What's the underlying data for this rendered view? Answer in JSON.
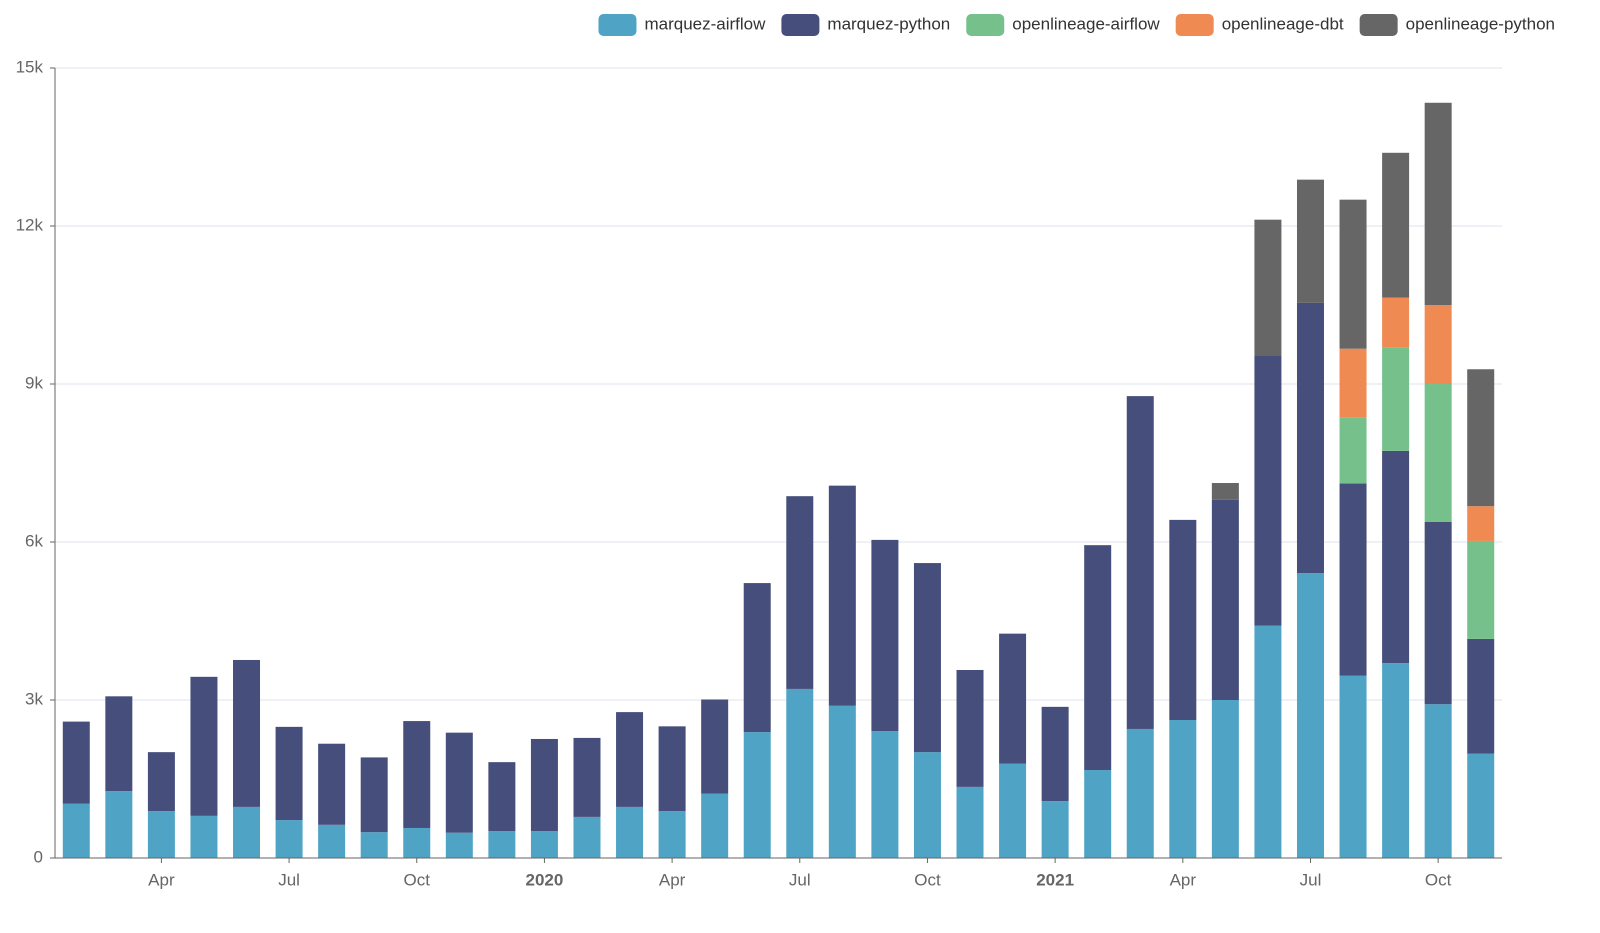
{
  "chart_data": {
    "type": "stacked_bar",
    "categories": [
      null,
      null,
      "Apr",
      null,
      null,
      "Jul",
      null,
      null,
      "Oct",
      null,
      null,
      "2020",
      null,
      null,
      "Apr",
      null,
      null,
      "Jul",
      null,
      null,
      "Oct",
      null,
      null,
      "2021",
      null,
      null,
      "Apr",
      null,
      null,
      "Jul",
      null,
      null,
      "Oct",
      null
    ],
    "series": [
      {
        "name": "marquez-airflow",
        "color": "#4fa4c6",
        "values": [
          1030,
          1270,
          890,
          800,
          970,
          720,
          630,
          490,
          570,
          480,
          510,
          510,
          780,
          970,
          890,
          1220,
          2390,
          3210,
          2890,
          2410,
          2010,
          1350,
          1790,
          1080,
          1670,
          2450,
          2620,
          3000,
          4410,
          5410,
          3460,
          3700,
          2920,
          1980
        ]
      },
      {
        "name": "marquez-python",
        "color": "#464f7c",
        "values": [
          1560,
          1800,
          1120,
          2640,
          2790,
          1770,
          1540,
          1420,
          2030,
          1900,
          1310,
          1750,
          1500,
          1800,
          1610,
          1790,
          2830,
          3660,
          4180,
          3630,
          3590,
          2220,
          2470,
          1790,
          4270,
          6320,
          3800,
          3800,
          5130,
          5130,
          3650,
          4030,
          3460,
          2180
        ]
      },
      {
        "name": "openlineage-airflow",
        "color": "#76c08c",
        "values": [
          null,
          null,
          null,
          null,
          null,
          null,
          null,
          null,
          null,
          null,
          null,
          null,
          null,
          null,
          null,
          null,
          null,
          null,
          null,
          null,
          null,
          null,
          null,
          null,
          null,
          null,
          null,
          null,
          null,
          null,
          1250,
          1960,
          2620,
          1860
        ]
      },
      {
        "name": "openlineage-dbt",
        "color": "#ee8a52",
        "values": [
          null,
          null,
          null,
          null,
          null,
          null,
          null,
          null,
          null,
          null,
          null,
          null,
          null,
          null,
          null,
          null,
          null,
          null,
          null,
          null,
          null,
          null,
          null,
          null,
          null,
          null,
          null,
          null,
          null,
          null,
          1310,
          950,
          1500,
          660
        ]
      },
      {
        "name": "openlineage-python",
        "color": "#666666",
        "values": [
          null,
          null,
          null,
          null,
          null,
          null,
          null,
          null,
          null,
          null,
          null,
          null,
          null,
          null,
          null,
          null,
          null,
          null,
          null,
          null,
          null,
          null,
          null,
          null,
          null,
          null,
          null,
          320,
          2580,
          2340,
          2830,
          2750,
          3840,
          2600
        ]
      }
    ],
    "ylim": [
      0,
      15000
    ],
    "yticks": [
      0,
      {
        "value": 3000,
        "label": "3k"
      },
      {
        "value": 6000,
        "label": "6k"
      },
      {
        "value": 9000,
        "label": "9k"
      },
      {
        "value": 12000,
        "label": "12k"
      },
      {
        "value": 15000,
        "label": "15k"
      }
    ],
    "grid": true,
    "legend": "top-right"
  }
}
